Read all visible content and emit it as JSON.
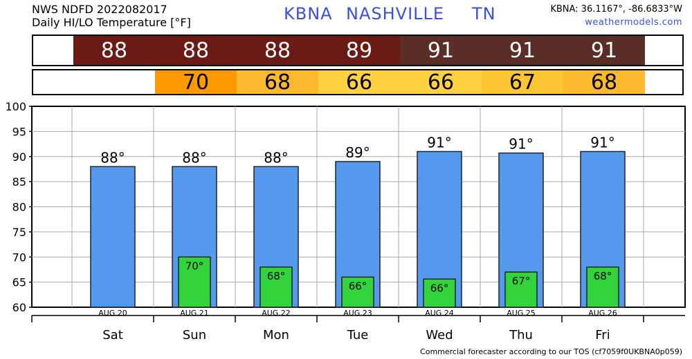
{
  "header": {
    "line1": "NWS NDFD 2022082017",
    "line2": "Daily HI/LO Temperature [°F]",
    "station": "KBNA",
    "city": "NASHVILLE",
    "state": "TN",
    "coords": "KBNA: 36.1167°, -86.6833°W",
    "site": "weathermodels.com"
  },
  "footer": "Commercial forecaster according to our TOS (cf7059f0UKBNA0p059)",
  "strips": {
    "hi": [
      {
        "value": "88",
        "color": "#6b1a14"
      },
      {
        "value": "88",
        "color": "#6b1a14"
      },
      {
        "value": "88",
        "color": "#6b1a14"
      },
      {
        "value": "89",
        "color": "#6b1a14"
      },
      {
        "value": "91",
        "color": "#5a2e26"
      },
      {
        "value": "91",
        "color": "#5a2e26"
      },
      {
        "value": "91",
        "color": "#5a2e26"
      }
    ],
    "lo": [
      {
        "value": "",
        "color": "#ffffff"
      },
      {
        "value": "70",
        "color": "#ff9900"
      },
      {
        "value": "68",
        "color": "#fdb92e"
      },
      {
        "value": "66",
        "color": "#ffd042"
      },
      {
        "value": "66",
        "color": "#ffd042"
      },
      {
        "value": "67",
        "color": "#fcc534"
      },
      {
        "value": "68",
        "color": "#fdb92e"
      }
    ]
  },
  "chart_data": {
    "type": "bar",
    "categories": [
      "Sat",
      "Sun",
      "Mon",
      "Tue",
      "Wed",
      "Thu",
      "Fri"
    ],
    "dates": [
      "AUG.20",
      "AUG.21",
      "AUG.22",
      "AUG.23",
      "AUG.24",
      "AUG.25",
      "AUG.26"
    ],
    "series": [
      {
        "values": [
          88,
          88,
          88,
          89,
          91,
          90.7,
          91
        ],
        "labels": [
          "88°",
          "88°",
          "88°",
          "89°",
          "91°",
          "91°",
          "91°"
        ],
        "color": "#5599ee"
      },
      {
        "values": [
          null,
          70,
          68,
          66,
          65.6,
          67,
          68
        ],
        "labels": [
          "",
          "70°",
          "68°",
          "66°",
          "66°",
          "67°",
          "68°"
        ],
        "color": "#33d33c"
      }
    ],
    "yticks": [
      60,
      65,
      70,
      75,
      80,
      85,
      90,
      95,
      100
    ],
    "ylim": [
      60,
      100
    ],
    "grid": true
  }
}
